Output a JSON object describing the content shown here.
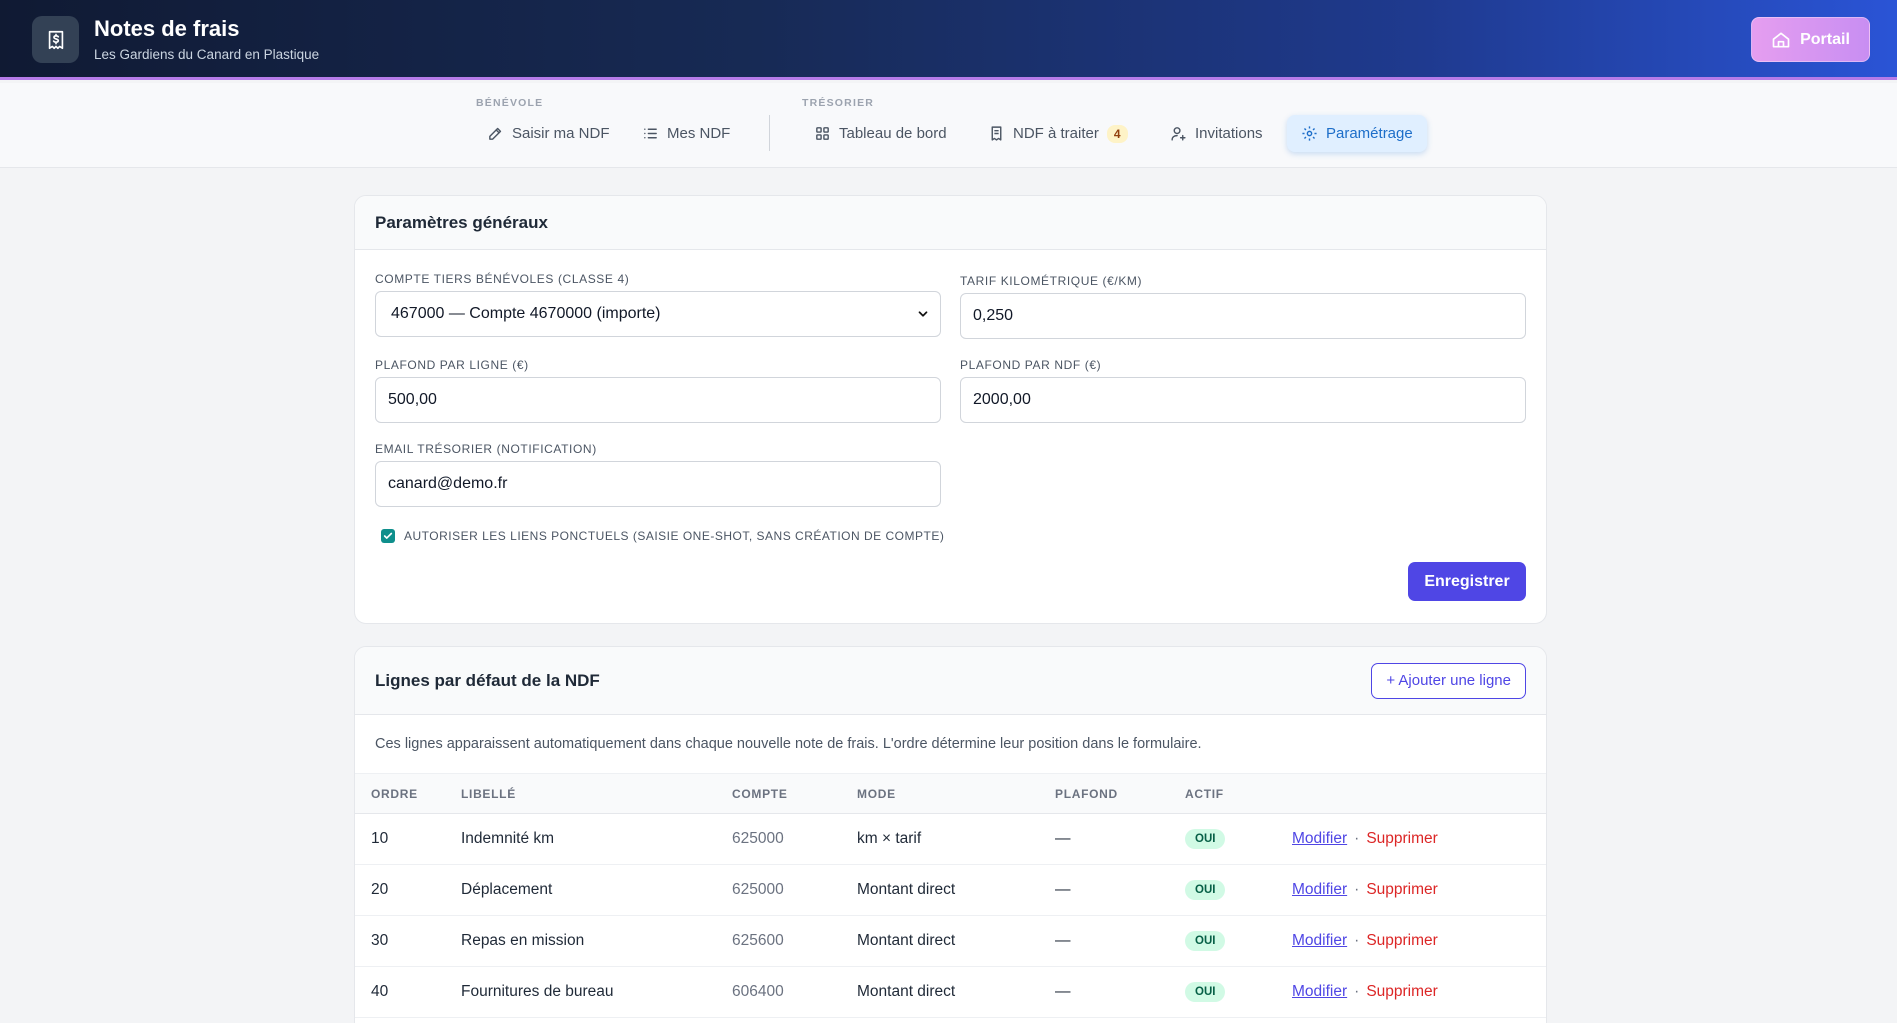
{
  "header": {
    "title": "Notes de frais",
    "subtitle": "Les Gardiens du Canard en Plastique",
    "portal_label": "Portail"
  },
  "nav": {
    "group_benevole": "BÉNÉVOLE",
    "group_tresorier": "TRÉSORIER",
    "items": [
      {
        "label": "Saisir ma NDF",
        "icon": "pen-edit-icon"
      },
      {
        "label": "Mes NDF",
        "icon": "list-icon"
      },
      {
        "label": "Tableau de bord",
        "icon": "dashboard-grid-icon"
      },
      {
        "label": "NDF à traiter",
        "icon": "receipt-icon",
        "badge": "4"
      },
      {
        "label": "Invitations",
        "icon": "user-plus-icon"
      },
      {
        "label": "Paramétrage",
        "icon": "gear-icon",
        "active": true
      }
    ]
  },
  "settings": {
    "title": "Paramètres généraux",
    "compte_label": "COMPTE TIERS BÉNÉVOLES (CLASSE 4)",
    "compte_value": "467000 — Compte 4670000 (importe)",
    "tarif_label": "TARIF KILOMÉTRIQUE (€/KM)",
    "tarif_value": "0,250",
    "plafond_ligne_label": "PLAFOND PAR LIGNE (€)",
    "plafond_ligne_value": "500,00",
    "plafond_ndf_label": "PLAFOND PAR NDF (€)",
    "plafond_ndf_value": "2000,00",
    "email_label": "EMAIL TRÉSORIER (NOTIFICATION)",
    "email_value": "canard@demo.fr",
    "oneshot_label": "AUTORISER LES LIENS PONCTUELS (SAISIE ONE-SHOT, SANS CRÉATION DE COMPTE)",
    "oneshot_checked": true,
    "save_label": "Enregistrer"
  },
  "lines": {
    "title": "Lignes par défaut de la NDF",
    "add_label": "+ Ajouter une ligne",
    "description": "Ces lignes apparaissent automatiquement dans chaque nouvelle note de frais. L'ordre détermine leur position dans le formulaire.",
    "columns": [
      "ORDRE",
      "LIBELLÉ",
      "COMPTE",
      "MODE",
      "PLAFOND",
      "ACTIF",
      ""
    ],
    "edit_label": "Modifier",
    "delete_label": "Supprimer",
    "separator": "·",
    "rows": [
      {
        "ordre": "10",
        "libelle": "Indemnité km",
        "compte": "625000",
        "mode": "km × tarif",
        "plafond": "—",
        "actif": "OUI"
      },
      {
        "ordre": "20",
        "libelle": "Déplacement",
        "compte": "625000",
        "mode": "Montant direct",
        "plafond": "—",
        "actif": "OUI"
      },
      {
        "ordre": "30",
        "libelle": "Repas en mission",
        "compte": "625600",
        "mode": "Montant direct",
        "plafond": "—",
        "actif": "OUI"
      },
      {
        "ordre": "40",
        "libelle": "Fournitures de bureau",
        "compte": "606400",
        "mode": "Montant direct",
        "plafond": "—",
        "actif": "OUI"
      }
    ]
  }
}
